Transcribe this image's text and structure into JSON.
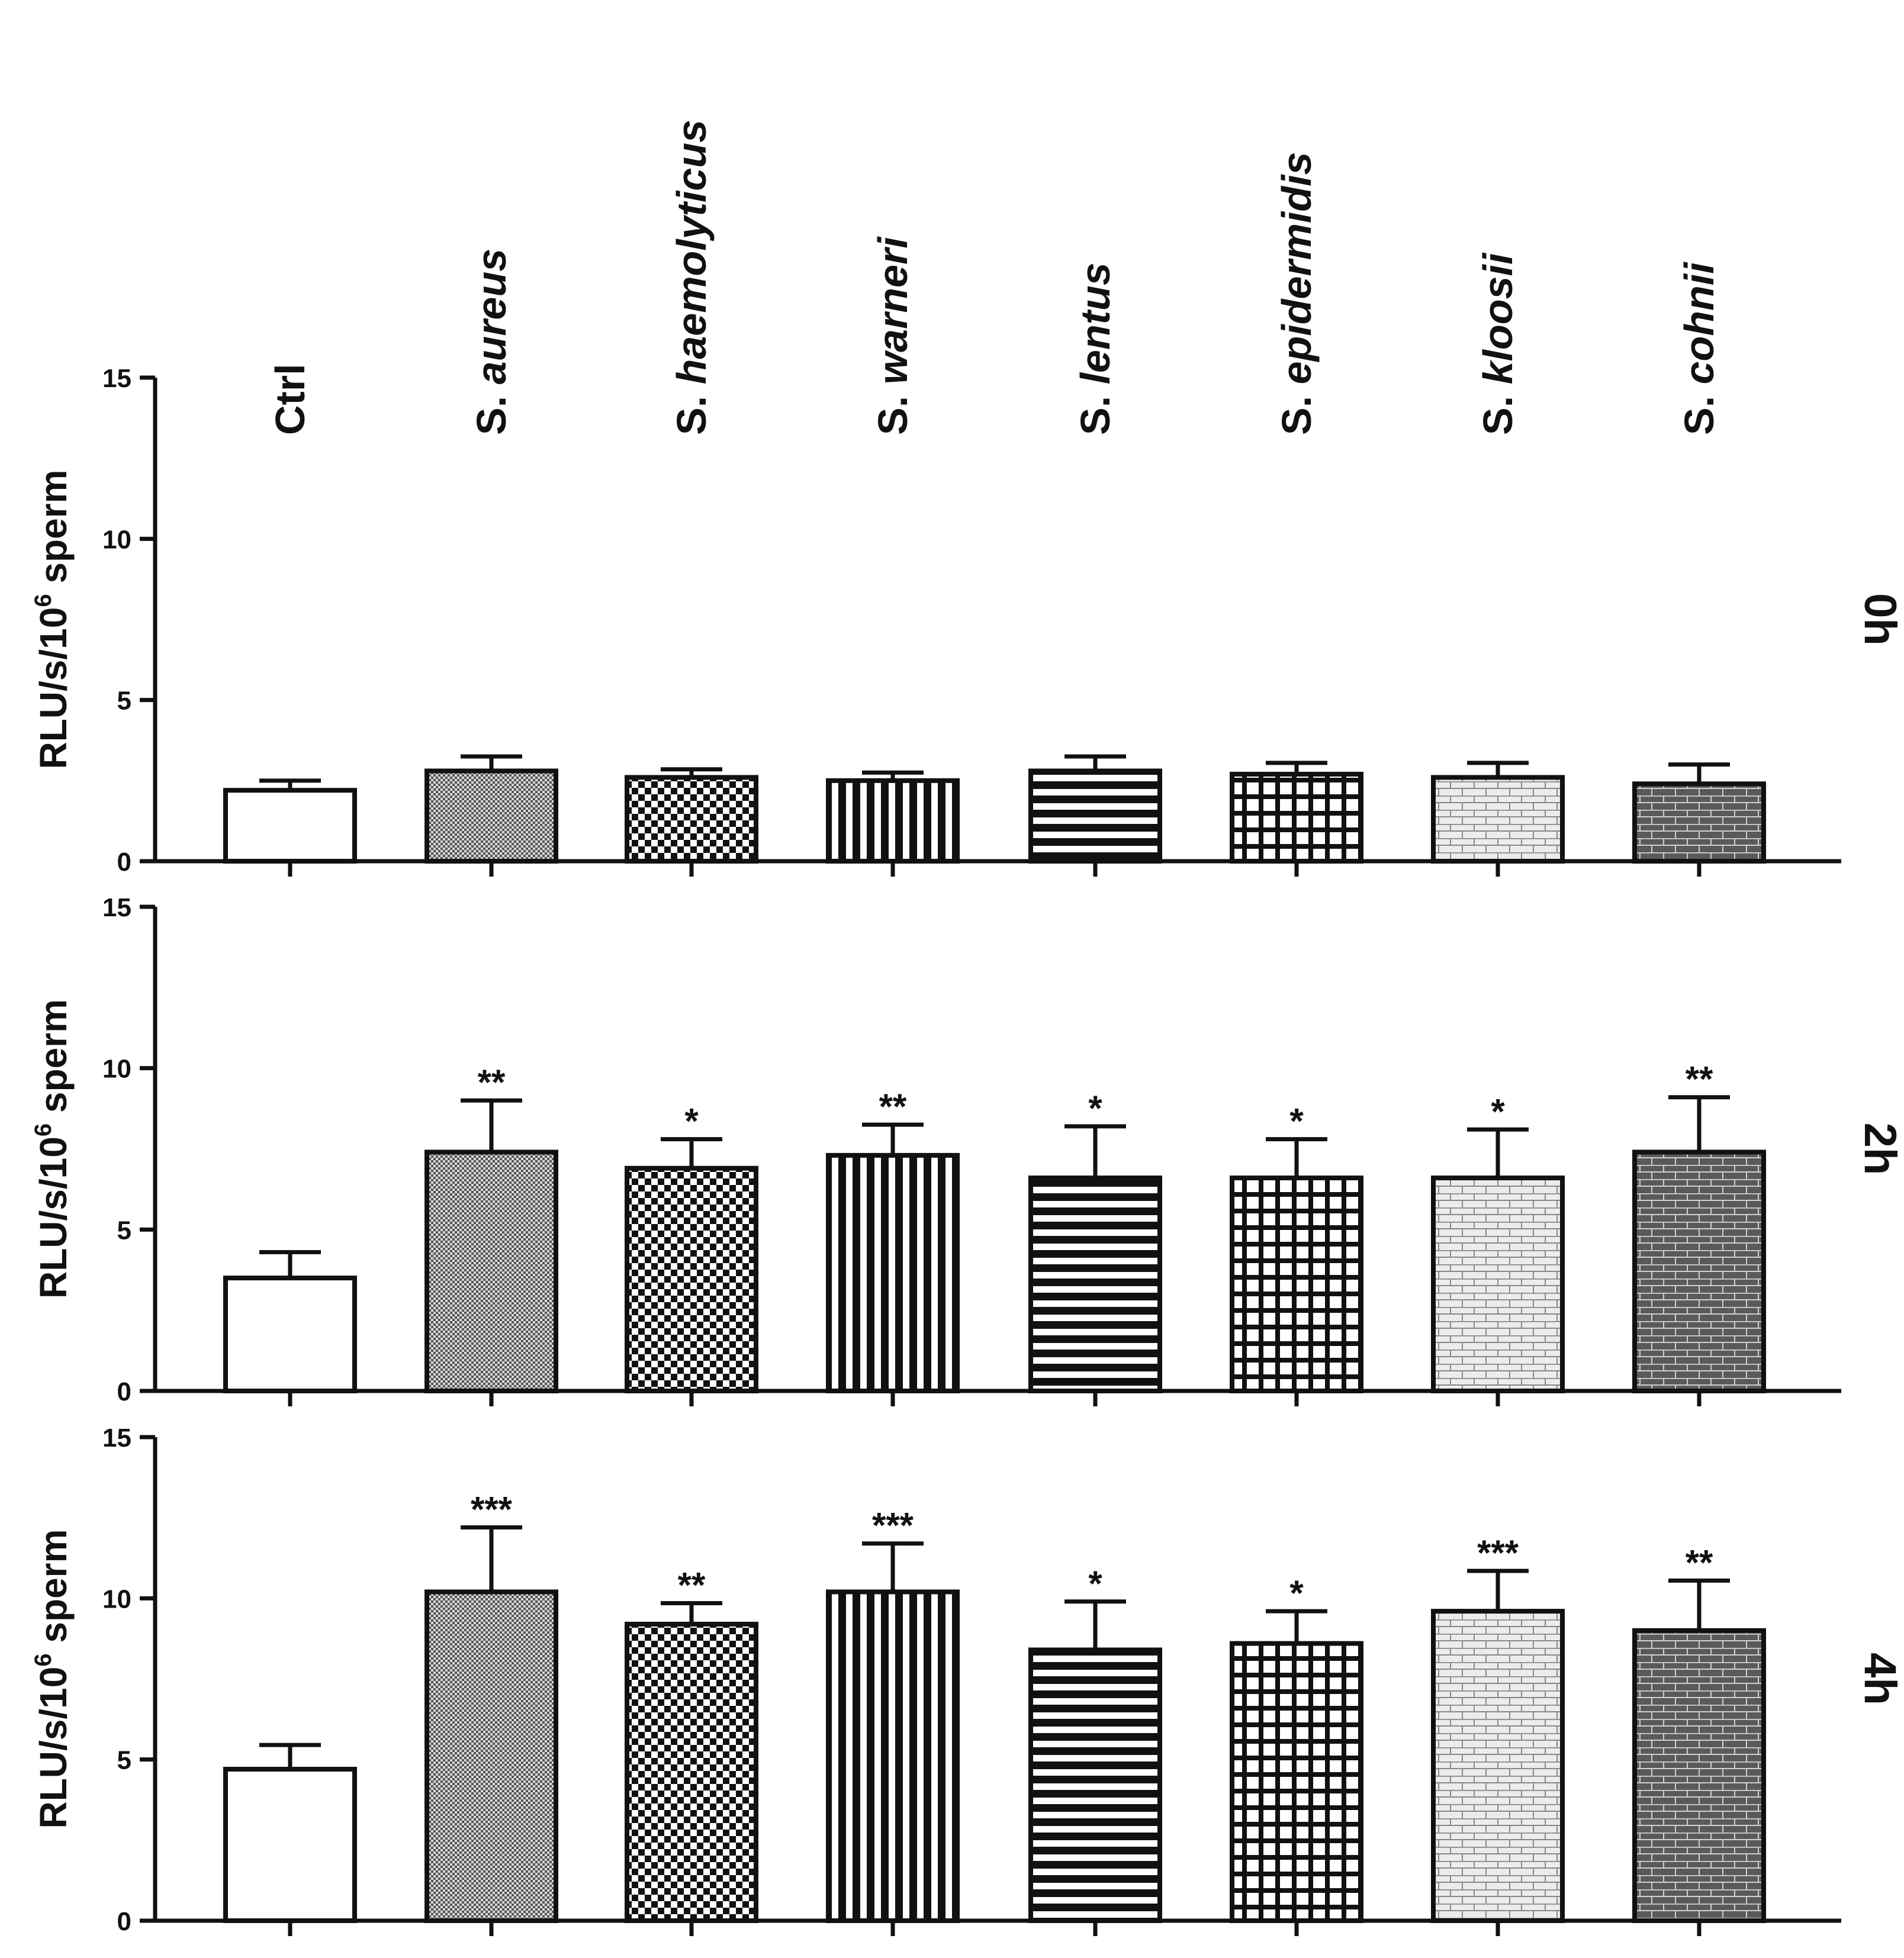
{
  "chart_data": {
    "type": "bar",
    "categories": [
      "Ctrl",
      "S. aureus",
      "S. haemolyticus",
      "S. warneri",
      "S. lentus",
      "S. epidermidis",
      "S. kloosii",
      "S. cohnii"
    ],
    "ylabel_main": "RLU/s/10",
    "ylabel_sup": "6",
    "ylabel_tail": " sperm",
    "ylim": [
      0,
      15
    ],
    "yticks": [
      0,
      5,
      10,
      15
    ],
    "patterns": [
      "none",
      "dense-dots",
      "checker",
      "vertical-stripes",
      "horizontal-stripes",
      "grid",
      "light-brick",
      "dark-brick"
    ],
    "panels": [
      {
        "label": "0h",
        "values": [
          2.2,
          2.8,
          2.6,
          2.5,
          2.8,
          2.7,
          2.6,
          2.4
        ],
        "errors": [
          0.3,
          0.45,
          0.25,
          0.25,
          0.45,
          0.35,
          0.45,
          0.6
        ],
        "significance": [
          "",
          "",
          "",
          "",
          "",
          "",
          "",
          ""
        ]
      },
      {
        "label": "2h",
        "values": [
          3.5,
          7.4,
          6.9,
          7.3,
          6.6,
          6.6,
          6.6,
          7.4
        ],
        "errors": [
          0.8,
          1.6,
          0.9,
          0.95,
          1.6,
          1.2,
          1.5,
          1.7
        ],
        "significance": [
          "",
          "**",
          "*",
          "**",
          "*",
          "*",
          "*",
          "**"
        ]
      },
      {
        "label": "4h",
        "values": [
          4.7,
          10.2,
          9.2,
          10.2,
          8.4,
          8.6,
          9.6,
          9.0
        ],
        "errors": [
          0.75,
          2.0,
          0.65,
          1.5,
          1.5,
          1.0,
          1.25,
          1.55
        ],
        "significance": [
          "",
          "***",
          "**",
          "***",
          "*",
          "*",
          "***",
          "**"
        ]
      }
    ]
  }
}
